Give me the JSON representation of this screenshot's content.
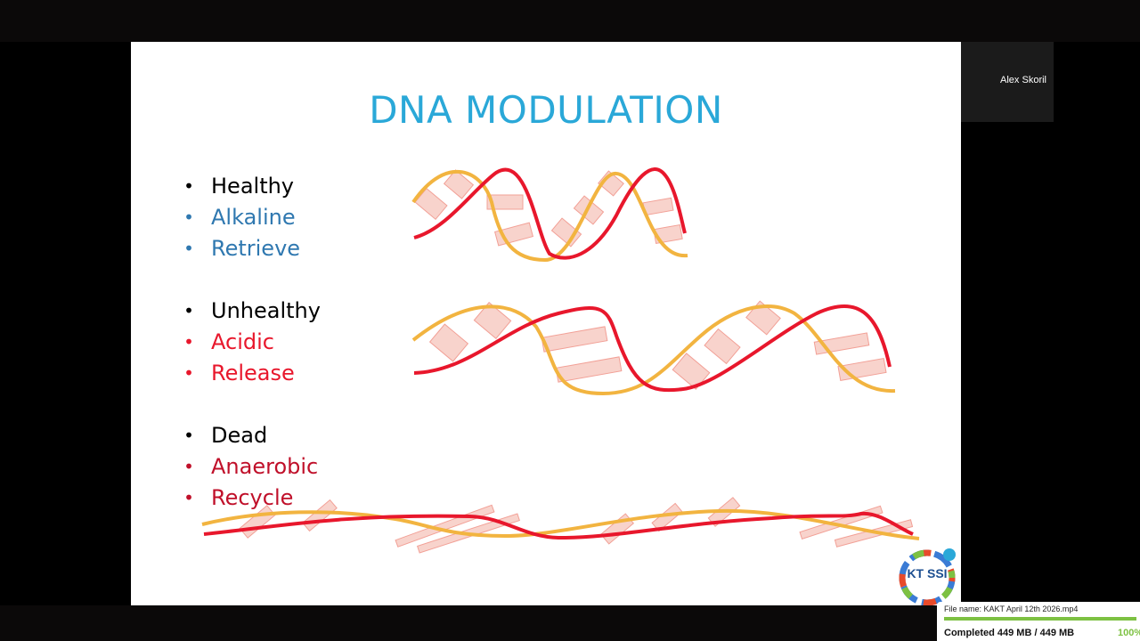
{
  "slide": {
    "title": "DNA MODULATION",
    "groups": [
      {
        "items": [
          {
            "bullet": "•",
            "text": "Healthy",
            "color": "#000000"
          },
          {
            "bullet": "•",
            "text": "Alkaline",
            "color": "#2f78b0"
          },
          {
            "bullet": "•",
            "text": "Retrieve",
            "color": "#2f78b0"
          }
        ]
      },
      {
        "items": [
          {
            "bullet": "•",
            "text": "Unhealthy",
            "color": "#000000"
          },
          {
            "bullet": "•",
            "text": "Acidic",
            "color": "#e8172c"
          },
          {
            "bullet": "•",
            "text": "Release",
            "color": "#e8172c"
          }
        ]
      },
      {
        "items": [
          {
            "bullet": "•",
            "text": "Dead",
            "color": "#000000"
          },
          {
            "bullet": "•",
            "text": "Anaerobic",
            "color": "#c0102a"
          },
          {
            "bullet": "•",
            "text": "Recycle",
            "color": "#c0102a"
          }
        ]
      }
    ],
    "helix_colors": {
      "strand_a": "#f2b440",
      "strand_b": "#e8172c",
      "rung": "#f8d3cc"
    },
    "logo": {
      "text": "KT SSI",
      "icon": "kt-ssi-logo"
    }
  },
  "video": {
    "participant_name": "Alex Skoril"
  },
  "download": {
    "file_name": "File name: KAKT April 12th 2026.mp4",
    "status": "Completed  449 MB / 449 MB",
    "percent": "100%",
    "progress": 1.0
  }
}
